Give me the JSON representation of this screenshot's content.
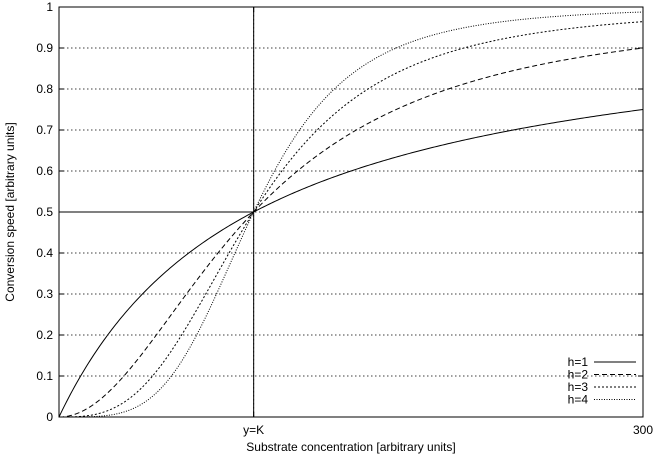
{
  "chart_data": {
    "type": "line",
    "title": "",
    "xlabel": "Substrate concentration [arbitrary units]",
    "ylabel": "Conversion speed [arbitrary units]",
    "xlim": [
      0,
      300
    ],
    "ylim": [
      0,
      1
    ],
    "grid": true,
    "legend_position": "bottom-right",
    "K": 100,
    "x_ticks": [
      {
        "value": 100,
        "label": "y=K"
      },
      {
        "value": 300,
        "label": "300"
      }
    ],
    "y_ticks": [
      {
        "value": 0,
        "label": "0"
      },
      {
        "value": 0.1,
        "label": "0.1"
      },
      {
        "value": 0.2,
        "label": "0.2"
      },
      {
        "value": 0.3,
        "label": "0.3"
      },
      {
        "value": 0.4,
        "label": "0.4"
      },
      {
        "value": 0.5,
        "label": "0.5"
      },
      {
        "value": 0.6,
        "label": "0.6"
      },
      {
        "value": 0.7,
        "label": "0.7"
      },
      {
        "value": 0.8,
        "label": "0.8"
      },
      {
        "value": 0.9,
        "label": "0.9"
      },
      {
        "value": 1,
        "label": "1"
      }
    ],
    "reference_lines": {
      "x": 100,
      "y": 0.5
    },
    "series": [
      {
        "name": "h=1",
        "h": 1,
        "dash": "none"
      },
      {
        "name": "h=2",
        "h": 2,
        "dash": "5 3"
      },
      {
        "name": "h=3",
        "h": 3,
        "dash": "2 2"
      },
      {
        "name": "h=4",
        "h": 4,
        "dash": "1 1.5"
      }
    ]
  }
}
